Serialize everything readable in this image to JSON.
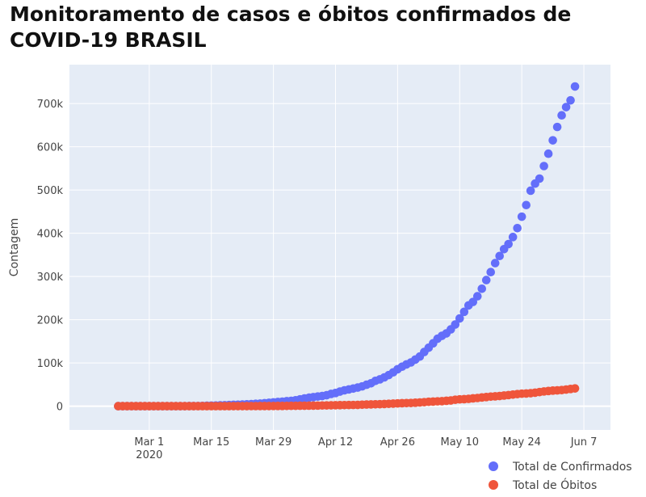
{
  "chart_data": {
    "type": "scatter",
    "title": "Monitoramento de casos e óbitos confirmados de COVID-19 BRASIL",
    "ylabel": "Contagem",
    "xlabel": "",
    "x_start": "2020-02-23",
    "x_end": "2020-06-08",
    "xlim": [
      "2020-02-12",
      "2020-06-13"
    ],
    "ylim": [
      -55000,
      790000
    ],
    "x_ticks": [
      {
        "date": "2020-03-01",
        "label": "Mar 1",
        "sublabel": "2020"
      },
      {
        "date": "2020-03-15",
        "label": "Mar 15"
      },
      {
        "date": "2020-03-29",
        "label": "Mar 29"
      },
      {
        "date": "2020-04-12",
        "label": "Apr 12"
      },
      {
        "date": "2020-04-26",
        "label": "Apr 26"
      },
      {
        "date": "2020-05-10",
        "label": "May 10"
      },
      {
        "date": "2020-05-24",
        "label": "May 24"
      },
      {
        "date": "2020-06-07",
        "label": "Jun 7"
      }
    ],
    "y_ticks": [
      {
        "value": 0,
        "label": "0"
      },
      {
        "value": 100000,
        "label": "100k"
      },
      {
        "value": 200000,
        "label": "200k"
      },
      {
        "value": 300000,
        "label": "300k"
      },
      {
        "value": 400000,
        "label": "400k"
      },
      {
        "value": 500000,
        "label": "500k"
      },
      {
        "value": 600000,
        "label": "600k"
      },
      {
        "value": 700000,
        "label": "700k"
      }
    ],
    "grid": true,
    "legend_position": "bottom-right",
    "series": [
      {
        "name": "Total de Confirmados",
        "color": "#636efa",
        "values": [
          0,
          0,
          0,
          0,
          0,
          0,
          0,
          0,
          0,
          0,
          0,
          0,
          0,
          0,
          0,
          100,
          200,
          300,
          400,
          600,
          900,
          1200,
          1500,
          1900,
          2200,
          2600,
          3000,
          3400,
          3900,
          4300,
          4800,
          5400,
          6000,
          6800,
          7700,
          8700,
          9600,
          10300,
          11400,
          12300,
          13600,
          15700,
          17900,
          19600,
          20900,
          22300,
          23400,
          25300,
          28300,
          30400,
          33700,
          36600,
          38700,
          40700,
          43000,
          45700,
          49500,
          52900,
          58500,
          61900,
          66500,
          71900,
          78200,
          85400,
          91300,
          96600,
          101100,
          107800,
          114700,
          125200,
          135100,
          145300,
          155900,
          162700,
          168300,
          177600,
          188900,
          202900,
          218200,
          233100,
          241100,
          254200,
          271600,
          291600,
          310100,
          330900,
          347400,
          363200,
          374900,
          391200,
          411800,
          438200,
          465200,
          498400,
          514800,
          526400,
          555400,
          584000,
          614900,
          645800,
          672800,
          691800,
          707400,
          739500
        ]
      },
      {
        "name": "Total de Óbitos",
        "color": "#ef553b",
        "values": [
          0,
          0,
          0,
          0,
          0,
          0,
          0,
          0,
          0,
          0,
          0,
          0,
          0,
          0,
          0,
          0,
          0,
          0,
          0,
          0,
          0,
          0,
          0,
          0,
          10,
          20,
          40,
          60,
          80,
          110,
          140,
          160,
          200,
          240,
          300,
          360,
          430,
          490,
          560,
          670,
          800,
          940,
          1060,
          1130,
          1240,
          1330,
          1530,
          1740,
          1940,
          2140,
          2360,
          2460,
          2570,
          2740,
          2910,
          3310,
          3700,
          4060,
          4290,
          4540,
          5020,
          5470,
          5900,
          6330,
          6750,
          7050,
          7320,
          7920,
          8540,
          9150,
          10000,
          10630,
          11120,
          11520,
          12400,
          13150,
          14820,
          15630,
          16120,
          16790,
          17970,
          18860,
          20050,
          21050,
          22000,
          22670,
          23470,
          24510,
          25600,
          26750,
          27880,
          28830,
          29310,
          29940,
          31200,
          32550,
          34020,
          35030,
          35930,
          36460,
          37140,
          38410,
          39680,
          41000
        ]
      }
    ]
  }
}
